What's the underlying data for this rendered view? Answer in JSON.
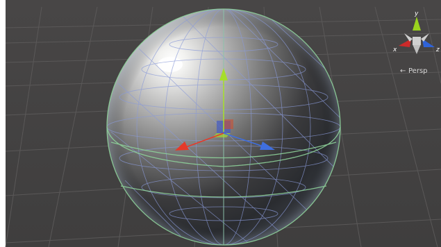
{
  "scene": {
    "background_color": "#4a4848",
    "grid_color": "#5c5a5a",
    "sphere_wire_color": "#8a9ad8",
    "collider_color": "#8ed29a"
  },
  "gizmo": {
    "axes": {
      "x_label": "x",
      "y_label": "y",
      "z_label": "z"
    },
    "projection_label": "Persp",
    "projection_arrow_icon": "arrow-left-icon",
    "colors": {
      "x": "#cc2a2a",
      "y": "#9ad41e",
      "z": "#2f63d8",
      "center": "#d0d0d0"
    }
  },
  "move_tool": {
    "colors": {
      "x": "#e53a2a",
      "y": "#a6de2a",
      "z": "#3f6fe0",
      "center_plane": "#4a5fbf"
    }
  }
}
